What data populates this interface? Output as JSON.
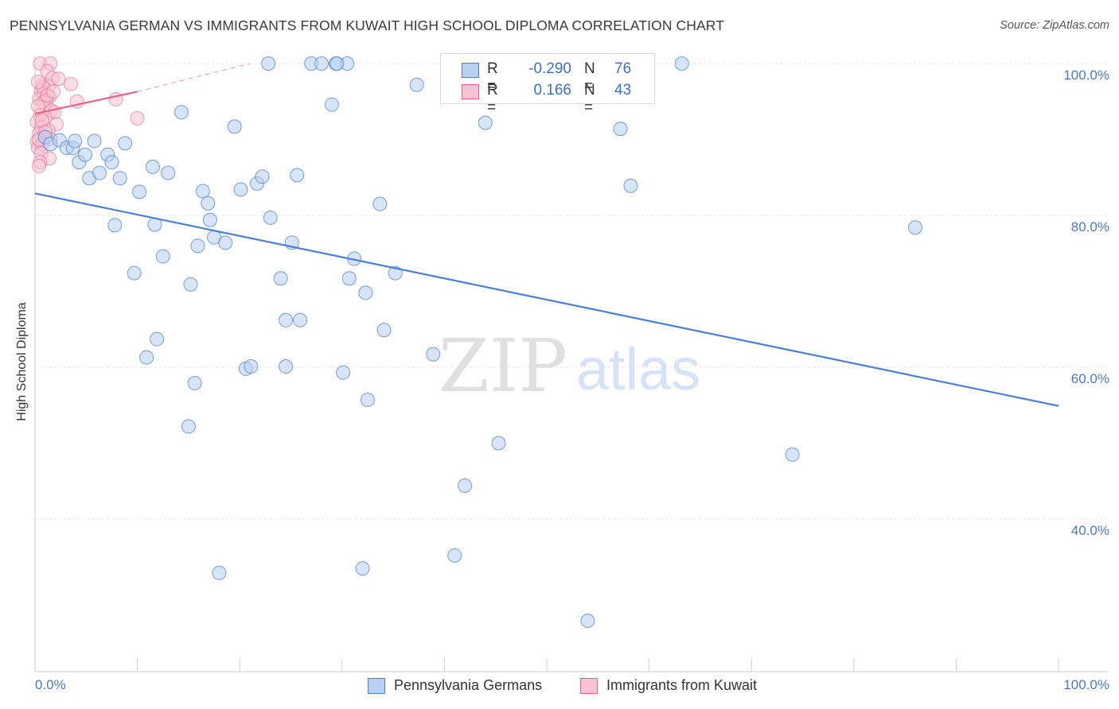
{
  "header": {
    "title": "PENNSYLVANIA GERMAN VS IMMIGRANTS FROM KUWAIT HIGH SCHOOL DIPLOMA CORRELATION CHART",
    "source": "Source: ZipAtlas.com"
  },
  "watermark": {
    "zip": "ZIP",
    "atlas": "atlas"
  },
  "legend": {
    "rows": [
      {
        "r_label": "R =",
        "r_value": "-0.290",
        "n_label": "N =",
        "n_value": "76",
        "color": "#7aa7e6"
      },
      {
        "r_label": "R =",
        "r_value": "0.166",
        "n_label": "N =",
        "n_value": "43",
        "color": "#f29bb5"
      }
    ]
  },
  "bottom_legend": {
    "series1": "Pennsylvania Germans",
    "series2": "Immigrants from Kuwait"
  },
  "chart_data": {
    "type": "scatter",
    "title": "PENNSYLVANIA GERMAN VS IMMIGRANTS FROM KUWAIT HIGH SCHOOL DIPLOMA CORRELATION CHART",
    "xlabel": "",
    "ylabel": "High School Diploma",
    "x_tick_labels": [
      "0.0%",
      "100.0%"
    ],
    "y_tick_labels": [
      "100.0%",
      "80.0%",
      "60.0%",
      "40.0%"
    ],
    "xlim": [
      0,
      100
    ],
    "ylim": [
      20,
      102
    ],
    "y_gridlines": [
      100,
      80,
      60,
      40
    ],
    "grid": true,
    "legend_position": "top-center",
    "colors": {
      "blue": "#4a7fd4",
      "blue_fill": "#b8d0f2",
      "pink": "#e8638c",
      "pink_fill": "#f8c2d2"
    },
    "series": [
      {
        "name": "Pennsylvania Germans",
        "color": "blue",
        "trend": {
          "x": [
            0,
            100
          ],
          "y": [
            82.9,
            54.9
          ]
        },
        "points": [
          [
            1.0,
            90.3
          ],
          [
            1.5,
            89.4
          ],
          [
            2.4,
            89.9
          ],
          [
            3.1,
            88.9
          ],
          [
            3.7,
            88.9
          ],
          [
            3.9,
            89.8
          ],
          [
            4.3,
            87.0
          ],
          [
            5.3,
            84.9
          ],
          [
            4.9,
            88.0
          ],
          [
            5.8,
            89.8
          ],
          [
            6.3,
            85.6
          ],
          [
            7.1,
            88.0
          ],
          [
            7.5,
            87.0
          ],
          [
            7.8,
            78.7
          ],
          [
            8.3,
            84.9
          ],
          [
            8.8,
            89.5
          ],
          [
            9.7,
            72.4
          ],
          [
            10.2,
            83.1
          ],
          [
            10.9,
            61.3
          ],
          [
            11.5,
            86.4
          ],
          [
            11.7,
            78.8
          ],
          [
            11.9,
            63.7
          ],
          [
            12.5,
            74.6
          ],
          [
            13.0,
            85.6
          ],
          [
            14.3,
            93.6
          ],
          [
            15.0,
            52.2
          ],
          [
            15.2,
            70.9
          ],
          [
            15.6,
            57.9
          ],
          [
            15.9,
            76.0
          ],
          [
            16.4,
            83.2
          ],
          [
            16.9,
            81.6
          ],
          [
            17.1,
            79.4
          ],
          [
            17.5,
            77.1
          ],
          [
            18.0,
            32.9
          ],
          [
            18.6,
            76.4
          ],
          [
            19.5,
            91.7
          ],
          [
            20.1,
            83.4
          ],
          [
            20.6,
            59.8
          ],
          [
            21.1,
            60.1
          ],
          [
            21.7,
            84.2
          ],
          [
            22.2,
            85.1
          ],
          [
            23.0,
            79.7
          ],
          [
            24.0,
            71.7
          ],
          [
            24.5,
            66.2
          ],
          [
            24.5,
            60.1
          ],
          [
            25.1,
            76.4
          ],
          [
            25.6,
            85.3
          ],
          [
            25.9,
            66.2
          ],
          [
            27.0,
            100.0
          ],
          [
            28.0,
            100.0
          ],
          [
            29.0,
            94.6
          ],
          [
            29.4,
            100.0
          ],
          [
            30.1,
            59.3
          ],
          [
            30.5,
            100.0
          ],
          [
            30.7,
            71.7
          ],
          [
            31.2,
            74.3
          ],
          [
            32.0,
            33.5
          ],
          [
            32.3,
            69.8
          ],
          [
            32.5,
            55.7
          ],
          [
            33.7,
            81.5
          ],
          [
            34.1,
            64.9
          ],
          [
            35.2,
            72.4
          ],
          [
            37.3,
            97.2
          ],
          [
            38.9,
            61.7
          ],
          [
            41.0,
            35.2
          ],
          [
            42.0,
            44.4
          ],
          [
            44.0,
            92.2
          ],
          [
            45.3,
            50.0
          ],
          [
            54.0,
            26.6
          ],
          [
            57.2,
            91.4
          ],
          [
            58.2,
            83.9
          ],
          [
            63.2,
            100.0
          ],
          [
            86.0,
            78.4
          ],
          [
            74.0,
            48.5
          ],
          [
            22.8,
            100.0
          ],
          [
            29.5,
            100.0
          ]
        ]
      },
      {
        "name": "Immigrants from Kuwait",
        "color": "pink",
        "trend": {
          "x": [
            0,
            10
          ],
          "y": [
            93.4,
            96.3
          ]
        },
        "trend_extension": {
          "x": [
            10,
            21
          ],
          "y": [
            96.3,
            100.0
          ]
        },
        "points": [
          [
            0.5,
            100.0
          ],
          [
            1.5,
            100.0
          ],
          [
            1.2,
            99.0
          ],
          [
            1.7,
            98.1
          ],
          [
            0.7,
            97.2
          ],
          [
            1.3,
            97.0
          ],
          [
            0.6,
            96.4
          ],
          [
            0.9,
            96.0
          ],
          [
            1.4,
            95.6
          ],
          [
            0.4,
            95.4
          ],
          [
            1.1,
            95.2
          ],
          [
            0.8,
            94.9
          ],
          [
            0.3,
            94.4
          ],
          [
            1.6,
            93.8
          ],
          [
            1.9,
            93.6
          ],
          [
            0.5,
            93.2
          ],
          [
            1.0,
            92.9
          ],
          [
            0.2,
            92.3
          ],
          [
            2.1,
            92.0
          ],
          [
            0.6,
            91.6
          ],
          [
            1.3,
            91.2
          ],
          [
            0.4,
            90.8
          ],
          [
            0.9,
            90.4
          ],
          [
            1.5,
            90.1
          ],
          [
            0.2,
            89.7
          ],
          [
            0.7,
            89.4
          ],
          [
            0.3,
            88.9
          ],
          [
            0.6,
            88.2
          ],
          [
            1.4,
            87.5
          ],
          [
            0.5,
            87.0
          ],
          [
            0.4,
            86.5
          ],
          [
            3.5,
            97.3
          ],
          [
            4.1,
            95.0
          ],
          [
            7.9,
            95.3
          ],
          [
            10.0,
            92.8
          ],
          [
            2.3,
            98.0
          ],
          [
            0.8,
            96.8
          ],
          [
            1.2,
            95.8
          ],
          [
            0.3,
            97.6
          ],
          [
            1.8,
            96.3
          ],
          [
            0.7,
            92.5
          ],
          [
            1.0,
            91.0
          ],
          [
            0.4,
            90.0
          ]
        ]
      }
    ]
  }
}
